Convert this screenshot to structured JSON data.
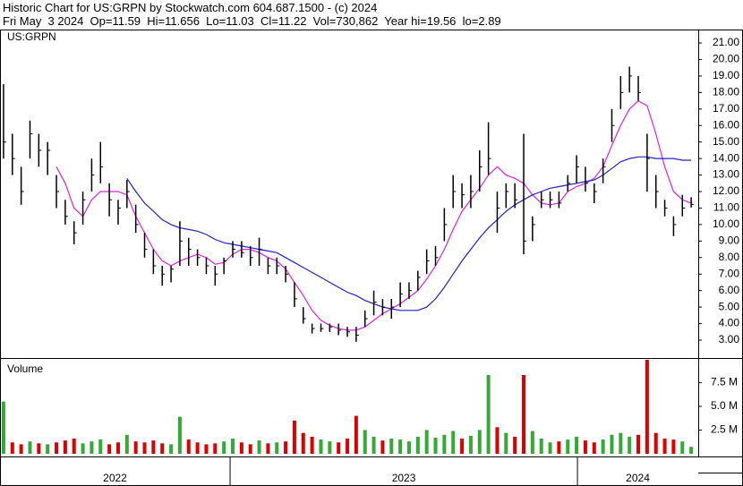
{
  "header": {
    "line1": "Historic Chart for US:GRPN by Stockwatch.com 604.687.1500 - (c) 2024",
    "line2": "Fri May  3 2024  Op=11.59  Hi=11.656  Lo=11.03  Cl=11.22  Vol=730,862  Year hi=19.56  lo=2.89"
  },
  "chart_data": [
    {
      "type": "ohlc",
      "label": "US:GRPN",
      "color": "#000000",
      "high": [
        18.5,
        15.5,
        13.5,
        16.3,
        15.5,
        15,
        13,
        11.5,
        10.2,
        12,
        14,
        15,
        12.5,
        11.5,
        12.7,
        11.2,
        9.5,
        8.5,
        7.5,
        7.5,
        10.2,
        9.2,
        8.5,
        8,
        7.5,
        8,
        9,
        9,
        8.7,
        9.2,
        8,
        8,
        7.5,
        6.5,
        5,
        4,
        4,
        4,
        4,
        3.8,
        3.8,
        4.8,
        6,
        5.5,
        5.5,
        6.5,
        6.5,
        7.2,
        8.5,
        8.7,
        11,
        13,
        12.5,
        13,
        14.5,
        16.2,
        12,
        12.5,
        12.5,
        15.5,
        10.5,
        12,
        12,
        12,
        13,
        14.2,
        13.5,
        12.5,
        14,
        17,
        19,
        19.56,
        19,
        15.5,
        13,
        11.5,
        10.5,
        11.8,
        11.656
      ],
      "low": [
        14,
        13,
        11.2,
        14,
        13.5,
        13,
        11,
        10,
        8.8,
        10,
        12,
        12.5,
        10.5,
        10,
        11,
        9.5,
        8,
        7,
        6.3,
        6.5,
        7.5,
        7.5,
        7.5,
        7,
        6.3,
        7,
        8,
        8,
        7.5,
        7.5,
        7,
        7,
        6.5,
        5,
        4,
        3.4,
        3.5,
        3.5,
        3.3,
        3.2,
        2.9,
        3.8,
        4.5,
        4.5,
        4.3,
        5,
        5.5,
        6,
        7,
        7.5,
        9,
        11,
        11,
        11,
        12,
        13,
        9.5,
        11,
        11,
        8.2,
        9,
        11,
        11,
        11,
        12,
        12.5,
        12,
        11.3,
        12.5,
        15,
        17,
        18,
        17.5,
        12,
        11,
        10.5,
        9.3,
        10.5,
        11.03
      ],
      "close": [
        15,
        14,
        12,
        15.5,
        14.5,
        14.5,
        12,
        10.5,
        9.5,
        11.5,
        13,
        13.5,
        11.5,
        11,
        12,
        10,
        8.5,
        7.5,
        7,
        7.3,
        9,
        8.5,
        8,
        7.5,
        7,
        7.8,
        8.5,
        8.3,
        8,
        8.5,
        7.5,
        7.5,
        7,
        5.5,
        4.3,
        3.7,
        3.7,
        3.8,
        3.6,
        3.5,
        3.3,
        4.3,
        5.3,
        5,
        5,
        5.8,
        6,
        6.8,
        7.8,
        8,
        10,
        12,
        11.8,
        12,
        13.5,
        14,
        11,
        12,
        11.5,
        9,
        10,
        11.5,
        11.5,
        11.3,
        12.5,
        13.5,
        12.5,
        12,
        13.5,
        16,
        18,
        19,
        18,
        14,
        12,
        11,
        10,
        11,
        11.22
      ],
      "lines": [
        {
          "color": "#e020e0",
          "values": [
            null,
            null,
            null,
            null,
            null,
            null,
            13.5,
            12.5,
            11,
            10.5,
            11.5,
            12,
            12,
            12,
            11.8,
            10.5,
            9.5,
            8.5,
            7.8,
            7.5,
            7.8,
            8,
            8.2,
            8,
            7.6,
            7.7,
            8.2,
            8.5,
            8.5,
            8.3,
            8,
            7.8,
            7.3,
            6.5,
            5.7,
            4.8,
            4.2,
            3.9,
            3.7,
            3.6,
            3.6,
            3.8,
            4.2,
            4.6,
            4.9,
            5.2,
            5.6,
            6,
            6.7,
            7.5,
            8.5,
            9.7,
            10.8,
            11.5,
            12.2,
            13,
            13.5,
            13,
            12.8,
            12.5,
            11.8,
            11.3,
            11.2,
            11.3,
            12,
            12.3,
            12.5,
            12.8,
            13.5,
            14.8,
            16,
            17,
            17.5,
            17.2,
            15.5,
            13.5,
            12,
            11.5,
            11.3
          ]
        },
        {
          "color": "#2020c8",
          "values": [
            null,
            null,
            null,
            null,
            null,
            null,
            null,
            null,
            null,
            null,
            null,
            null,
            null,
            null,
            12.8,
            12,
            11.3,
            10.8,
            10.3,
            10,
            9.8,
            9.7,
            9.6,
            9.4,
            9.1,
            8.9,
            8.8,
            8.7,
            8.6,
            8.5,
            8.4,
            8.3,
            8,
            7.7,
            7.4,
            7.1,
            6.8,
            6.5,
            6.2,
            5.9,
            5.7,
            5.4,
            5.2,
            5,
            4.9,
            4.8,
            4.8,
            4.8,
            5,
            5.5,
            6.2,
            7,
            7.8,
            8.5,
            9.2,
            9.8,
            10.3,
            10.8,
            11.2,
            11.5,
            11.8,
            12,
            12.2,
            12.3,
            12.4,
            12.5,
            12.6,
            12.7,
            13,
            13.4,
            13.8,
            14,
            14.1,
            14.1,
            14,
            14,
            14,
            13.9,
            13.9
          ]
        }
      ],
      "xlim": [
        -0.4,
        78.8
      ],
      "xticks": [
        25.7,
        65.1
      ],
      "period_labels": [
        "2022",
        "2023",
        "2024"
      ],
      "ylim": [
        1.97,
        21.76
      ],
      "yticks": [
        {
          "value": 3,
          "label": "3.00"
        },
        {
          "value": 4,
          "label": "4.00"
        },
        {
          "value": 5,
          "label": "5.00"
        },
        {
          "value": 6,
          "label": "6.00"
        },
        {
          "value": 7,
          "label": "7.00"
        },
        {
          "value": 8,
          "label": "8.00"
        },
        {
          "value": 9,
          "label": "9.00"
        },
        {
          "value": 10,
          "label": "10.00"
        },
        {
          "value": 11,
          "label": "11.00"
        },
        {
          "value": 12,
          "label": "12.00"
        },
        {
          "value": 13,
          "label": "13.00"
        },
        {
          "value": 14,
          "label": "14.00"
        },
        {
          "value": 15,
          "label": "15.00"
        },
        {
          "value": 16,
          "label": "16.00"
        },
        {
          "value": 17,
          "label": "17.00"
        },
        {
          "value": 18,
          "label": "18.00"
        },
        {
          "value": 19,
          "label": "19.00"
        },
        {
          "value": 20,
          "label": "20.00"
        },
        {
          "value": 21,
          "label": "21.00"
        }
      ]
    },
    {
      "type": "bar",
      "label": "Volume",
      "up_color": "#33aa33",
      "down_color": "#dd0000",
      "values": [
        5.5,
        1.2,
        1.0,
        1.3,
        1.1,
        1.0,
        1.2,
        1.4,
        1.6,
        1.1,
        1.3,
        1.5,
        1.0,
        1.2,
        2.0,
        1.3,
        1.2,
        1.4,
        1.1,
        1.0,
        3.9,
        1.5,
        1.2,
        1.0,
        1.1,
        1.3,
        1.6,
        1.2,
        1.0,
        1.4,
        1.1,
        1.2,
        1.3,
        3.5,
        2.2,
        1.8,
        1.5,
        1.3,
        1.2,
        1.6,
        4.0,
        2.5,
        1.8,
        1.4,
        1.6,
        1.5,
        1.3,
        1.8,
        2.5,
        1.7,
        2.0,
        2.4,
        1.6,
        1.9,
        2.5,
        8.3,
        2.8,
        2.2,
        1.8,
        8.3,
        2.4,
        1.6,
        1.2,
        1.3,
        1.5,
        1.8,
        1.4,
        1.2,
        1.5,
        2.0,
        2.2,
        1.8,
        2.0,
        9.9,
        2.2,
        1.6,
        1.5,
        1.3,
        0.730862
      ],
      "ylim": [
        0,
        9.9
      ],
      "yticks": [
        {
          "value": 2.5,
          "label": "2.5 M"
        },
        {
          "value": 5,
          "label": "5.0 M"
        },
        {
          "value": 7.5,
          "label": "7.5 M"
        }
      ]
    }
  ]
}
